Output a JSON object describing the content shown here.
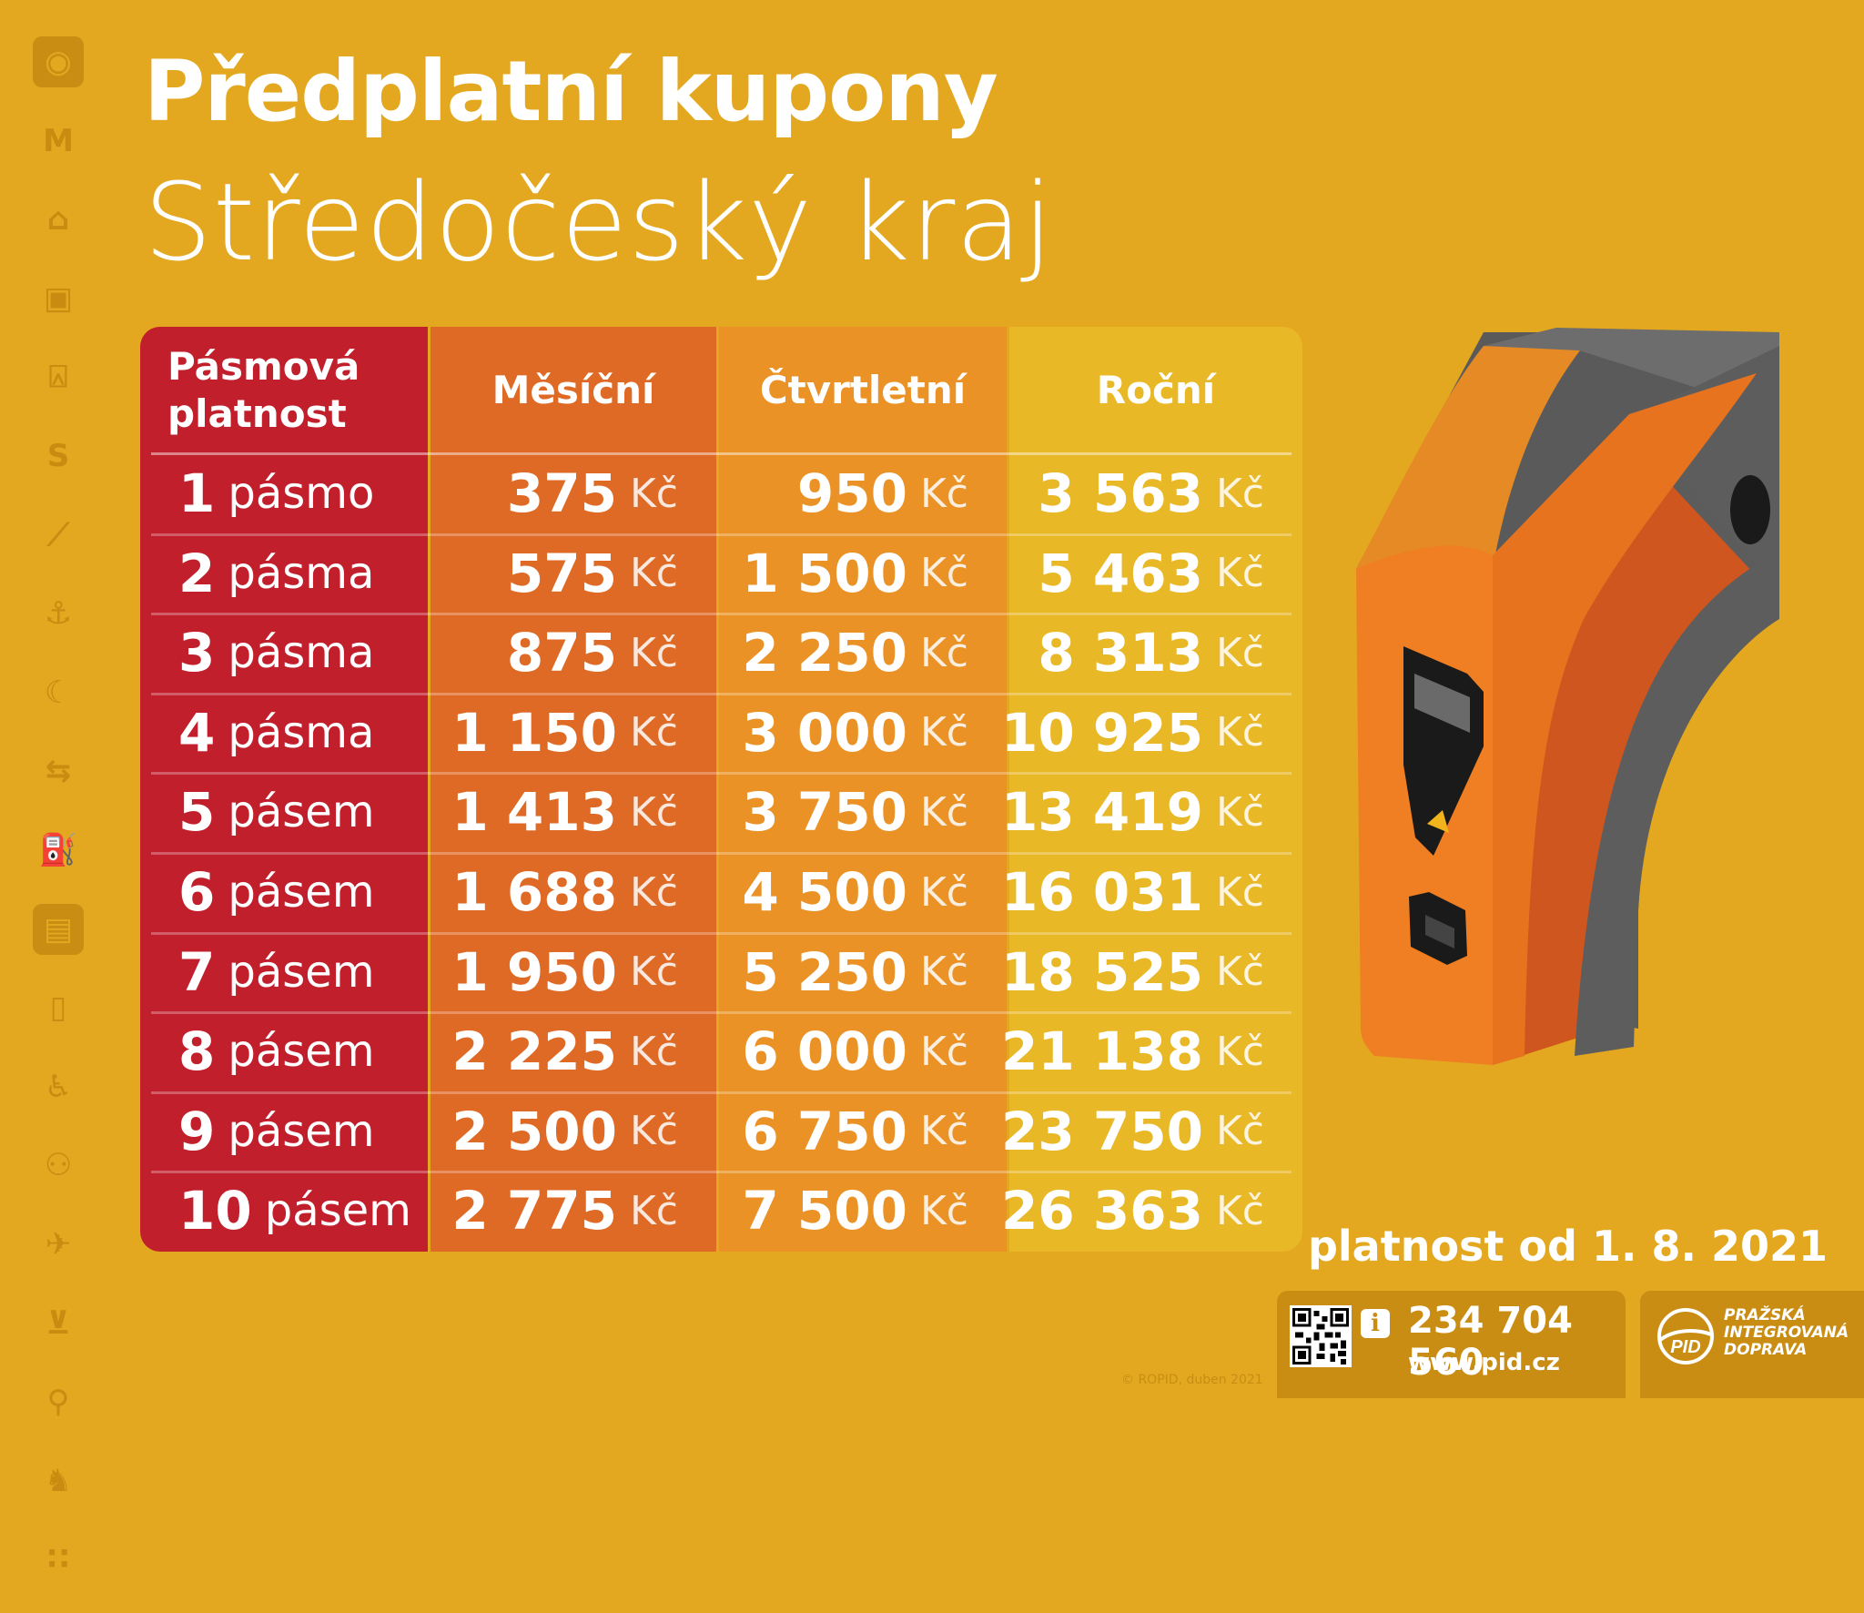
{
  "title": "Předplatní kupony",
  "subtitle": "Středočeský kraj",
  "sidebar_icons": [
    {
      "name": "pid-logo-icon",
      "boxed": true
    },
    {
      "name": "metro-icon",
      "boxed": false
    },
    {
      "name": "tram-icon",
      "boxed": false
    },
    {
      "name": "bus-icon",
      "boxed": false
    },
    {
      "name": "trolleybus-icon",
      "boxed": false
    },
    {
      "name": "train-s-icon",
      "boxed": false
    },
    {
      "name": "funicular-icon",
      "boxed": false
    },
    {
      "name": "ferry-anchor-icon",
      "boxed": false
    },
    {
      "name": "night-icon",
      "boxed": false
    },
    {
      "name": "transfer-icon",
      "boxed": false
    },
    {
      "name": "p-r-icon",
      "boxed": false
    },
    {
      "name": "ticket-icon",
      "boxed": true
    },
    {
      "name": "mobile-icon",
      "boxed": false
    },
    {
      "name": "wheelchair-icon",
      "boxed": false
    },
    {
      "name": "family-icon",
      "boxed": false
    },
    {
      "name": "airplane-icon",
      "boxed": false
    },
    {
      "name": "stroller-icon",
      "boxed": false
    },
    {
      "name": "bicycle-icon",
      "boxed": false
    },
    {
      "name": "dog-icon",
      "boxed": false
    },
    {
      "name": "footsteps-icon",
      "boxed": false
    }
  ],
  "table": {
    "header": {
      "zone": "Pásmová platnost",
      "monthly": "Měsíční",
      "quarterly": "Čtvrtletní",
      "yearly": "Roční"
    },
    "currency": "Kč",
    "rows": [
      {
        "num": "1",
        "unit": "pásmo",
        "monthly": "375",
        "quarterly": "950",
        "yearly": "3 563"
      },
      {
        "num": "2",
        "unit": "pásma",
        "monthly": "575",
        "quarterly": "1 500",
        "yearly": "5 463"
      },
      {
        "num": "3",
        "unit": "pásma",
        "monthly": "875",
        "quarterly": "2 250",
        "yearly": "8 313"
      },
      {
        "num": "4",
        "unit": "pásma",
        "monthly": "1 150",
        "quarterly": "3 000",
        "yearly": "10 925"
      },
      {
        "num": "5",
        "unit": "pásem",
        "monthly": "1 413",
        "quarterly": "3 750",
        "yearly": "13 419"
      },
      {
        "num": "6",
        "unit": "pásem",
        "monthly": "1 688",
        "quarterly": "4 500",
        "yearly": "16 031"
      },
      {
        "num": "7",
        "unit": "pásem",
        "monthly": "1 950",
        "quarterly": "5 250",
        "yearly": "18 525"
      },
      {
        "num": "8",
        "unit": "pásem",
        "monthly": "2 225",
        "quarterly": "6 000",
        "yearly": "21 138"
      },
      {
        "num": "9",
        "unit": "pásem",
        "monthly": "2 500",
        "quarterly": "6 750",
        "yearly": "23 750"
      },
      {
        "num": "10",
        "unit": "pásem",
        "monthly": "2 775",
        "quarterly": "7 500",
        "yearly": "26 363"
      }
    ]
  },
  "validity": "platnost od 1. 8. 2021",
  "contact": {
    "phone": "234 704 560",
    "web": "www.pid.cz",
    "info_icon": "i"
  },
  "brand": {
    "logo_text": "PID",
    "line1": "PRAŽSKÁ",
    "line2": "INTEGROVANÁ",
    "line3": "DOPRAVA"
  },
  "copyright": "© ROPID, duben 2021",
  "colors": {
    "background": "#e3a820",
    "zone_column": "#c11f2b",
    "monthly_column": "#df6a25",
    "quarterly_column": "#ea9225",
    "yearly_column": "#e9b826",
    "icon_tint": "#c98d14"
  }
}
